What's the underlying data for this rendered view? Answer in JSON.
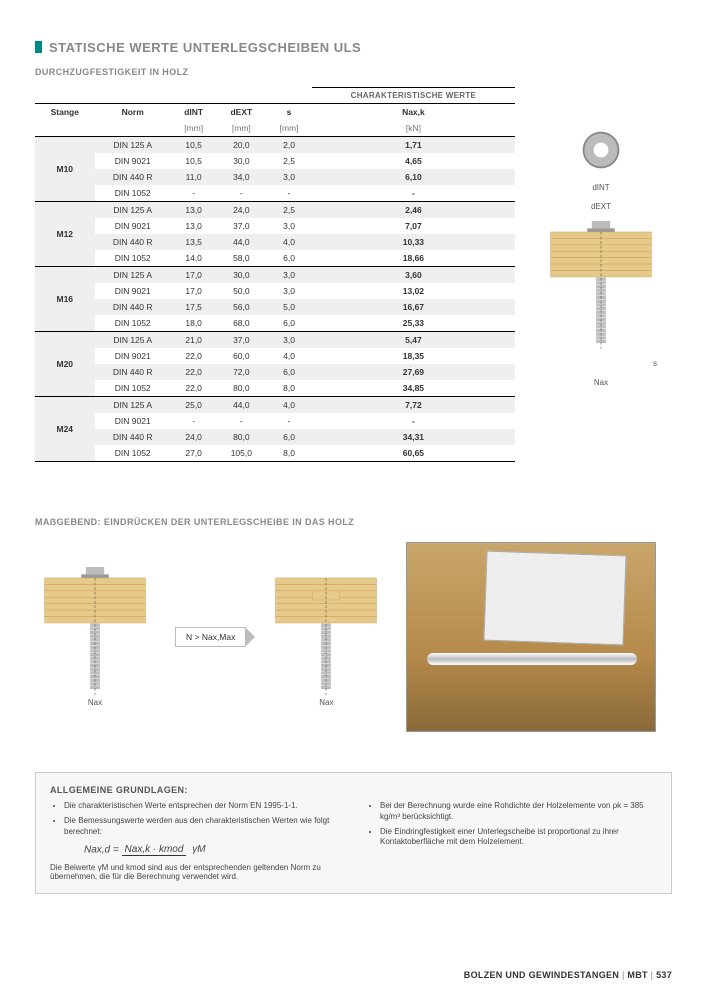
{
  "title": "STATISCHE WERTE UNTERLEGSCHEIBEN ULS",
  "subtitle1": "DURCHZUGFESTIGKEIT IN HOLZ",
  "char_header": "CHARAKTERISTISCHE WERTE",
  "table": {
    "headers": {
      "stange": "Stange",
      "norm": "Norm",
      "dint": "dINT",
      "dext": "dEXT",
      "s": "s",
      "naxk": "Nax,k"
    },
    "units": {
      "stange": "",
      "norm": "",
      "dint": "[mm]",
      "dext": "[mm]",
      "s": "[mm]",
      "naxk": "[kN]"
    },
    "groups": [
      {
        "stange": "M10",
        "rows": [
          {
            "norm": "DIN 125 A",
            "dint": "10,5",
            "dext": "20,0",
            "s": "2,0",
            "n": "1,71"
          },
          {
            "norm": "DIN 9021",
            "dint": "10,5",
            "dext": "30,0",
            "s": "2,5",
            "n": "4,65"
          },
          {
            "norm": "DIN 440 R",
            "dint": "11,0",
            "dext": "34,0",
            "s": "3,0",
            "n": "6,10"
          },
          {
            "norm": "DIN 1052",
            "dint": "-",
            "dext": "-",
            "s": "-",
            "n": "-"
          }
        ]
      },
      {
        "stange": "M12",
        "rows": [
          {
            "norm": "DIN 125 A",
            "dint": "13,0",
            "dext": "24,0",
            "s": "2,5",
            "n": "2,46"
          },
          {
            "norm": "DIN 9021",
            "dint": "13,0",
            "dext": "37,0",
            "s": "3,0",
            "n": "7,07"
          },
          {
            "norm": "DIN 440 R",
            "dint": "13,5",
            "dext": "44,0",
            "s": "4,0",
            "n": "10,33"
          },
          {
            "norm": "DIN 1052",
            "dint": "14,0",
            "dext": "58,0",
            "s": "6,0",
            "n": "18,66"
          }
        ]
      },
      {
        "stange": "M16",
        "rows": [
          {
            "norm": "DIN 125 A",
            "dint": "17,0",
            "dext": "30,0",
            "s": "3,0",
            "n": "3,60"
          },
          {
            "norm": "DIN 9021",
            "dint": "17,0",
            "dext": "50,0",
            "s": "3,0",
            "n": "13,02"
          },
          {
            "norm": "DIN 440 R",
            "dint": "17,5",
            "dext": "56,0",
            "s": "5,0",
            "n": "16,67"
          },
          {
            "norm": "DIN 1052",
            "dint": "18,0",
            "dext": "68,0",
            "s": "6,0",
            "n": "25,33"
          }
        ]
      },
      {
        "stange": "M20",
        "rows": [
          {
            "norm": "DIN 125 A",
            "dint": "21,0",
            "dext": "37,0",
            "s": "3,0",
            "n": "5,47"
          },
          {
            "norm": "DIN 9021",
            "dint": "22,0",
            "dext": "60,0",
            "s": "4,0",
            "n": "18,35"
          },
          {
            "norm": "DIN 440 R",
            "dint": "22,0",
            "dext": "72,0",
            "s": "6,0",
            "n": "27,69"
          },
          {
            "norm": "DIN 1052",
            "dint": "22,0",
            "dext": "80,0",
            "s": "8,0",
            "n": "34,85"
          }
        ]
      },
      {
        "stange": "M24",
        "rows": [
          {
            "norm": "DIN 125 A",
            "dint": "25,0",
            "dext": "44,0",
            "s": "4,0",
            "n": "7,72"
          },
          {
            "norm": "DIN 9021",
            "dint": "-",
            "dext": "-",
            "s": "-",
            "n": "-"
          },
          {
            "norm": "DIN 440 R",
            "dint": "24,0",
            "dext": "80,0",
            "s": "6,0",
            "n": "34,31"
          },
          {
            "norm": "DIN 1052",
            "dint": "27,0",
            "dext": "105,0",
            "s": "8,0",
            "n": "60,65"
          }
        ]
      }
    ]
  },
  "side_labels": {
    "dint": "dINT",
    "dext": "dEXT",
    "s": "s",
    "nax": "Nax"
  },
  "subtitle2": "MAẞGEBEND: EINDRÜCKEN DER UNTERLEGSCHEIBE IN DAS HOLZ",
  "compare": {
    "nax_left": "Nax",
    "condition": "N > Nax,Max",
    "nax_right": "Nax"
  },
  "photo_plate": "",
  "grundlagen": {
    "title": "ALLGEMEINE GRUNDLAGEN:",
    "left": {
      "b1": "Die charakteristischen Werte entsprechen der Norm EN 1995-1-1.",
      "b2": "Die Bemessungswerte werden aus den charakteristischen Werten wie folgt berechnet:",
      "formula_lhs": "Nax,d =",
      "formula_num": "Nax,k · kmod",
      "formula_den": "γM",
      "note": "Die Beiwerte γM und kmod sind aus der entsprechenden geltenden Norm zu übernehmen, die für die Berechnung verwendet wird."
    },
    "right": {
      "b1": "Bei der Berechnung wurde eine Rohdichte der Holzelemente von ρk = 385 kg/m³ berücksichtigt.",
      "b2": "Die Eindringfestigkeit einer Unterlegscheibe ist proportional zu ihrer Kontaktoberfläche mit dem Holzelement."
    }
  },
  "footer": {
    "section": "BOLZEN UND GEWINDESTANGEN",
    "brand": "MBT",
    "page": "537"
  },
  "colors": {
    "accent": "#008888",
    "wood_light": "#e7c98a",
    "wood_line": "#c9a55f",
    "metal": "#bfbfbf"
  }
}
